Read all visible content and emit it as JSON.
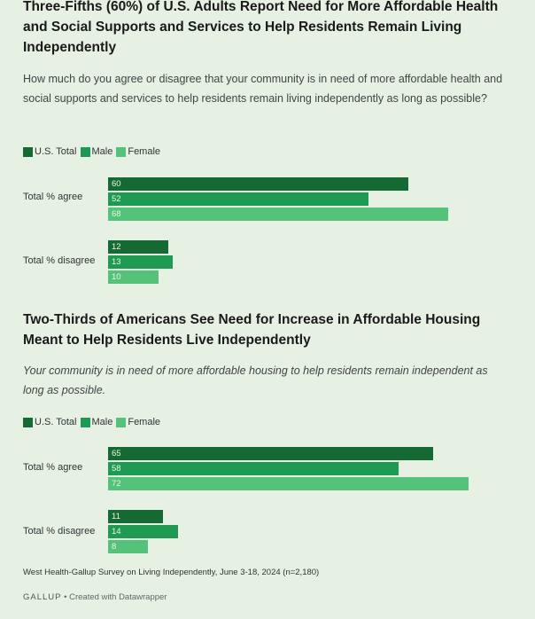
{
  "colors": {
    "us_total": "#156a34",
    "male": "#1f9a52",
    "female": "#55c27a"
  },
  "legend": {
    "us_total": "U.S. Total",
    "male": "Male",
    "female": "Female"
  },
  "chart_data": [
    {
      "type": "bar",
      "orientation": "horizontal",
      "title": "Three-Fifths (60%) of U.S. Adults Report Need for More Affordable Health and Social Supports and Services to Help Residents Remain Living Independently",
      "subtitle": "How much do you agree or disagree that your community is in need of more affordable health and social supports and services to help residents remain living independently as long as possible?",
      "categories": [
        "Total % agree",
        "Total % disagree"
      ],
      "series": [
        {
          "name": "U.S. Total",
          "values": [
            60,
            12
          ]
        },
        {
          "name": "Male",
          "values": [
            52,
            13
          ]
        },
        {
          "name": "Female",
          "values": [
            68,
            10
          ]
        }
      ],
      "xlim": [
        0,
        100
      ]
    },
    {
      "type": "bar",
      "orientation": "horizontal",
      "title": "Two-Thirds of Americans See Need for Increase in Affordable Housing Meant to Help Residents Live Independently",
      "subtitle": "Your community is in need of more affordable housing to help residents remain independent as long as possible.",
      "categories": [
        "Total % agree",
        "Total % disagree"
      ],
      "series": [
        {
          "name": "U.S. Total",
          "values": [
            65,
            11
          ]
        },
        {
          "name": "Male",
          "values": [
            58,
            14
          ]
        },
        {
          "name": "Female",
          "values": [
            72,
            8
          ]
        }
      ],
      "xlim": [
        0,
        100
      ]
    }
  ],
  "source": "West Health-Gallup Survey on Living Independently, June 3-18, 2024 (n=2,180)",
  "footer": {
    "brand": "GALLUP",
    "credit": "• Created with Datawrapper"
  }
}
